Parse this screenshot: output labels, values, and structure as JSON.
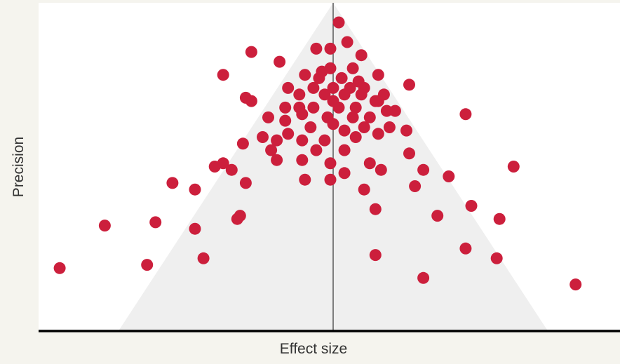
{
  "chart_data": {
    "type": "scatter",
    "title": "",
    "xlabel": "Effect size",
    "ylabel": "Precision",
    "xlim": [
      -1.0,
      1.0
    ],
    "ylim": [
      0,
      1.0
    ],
    "grid": false,
    "legend": "none",
    "reference_line_x": 0,
    "funnel": {
      "apex": [
        0,
        1.0
      ],
      "base_left": [
        -0.76,
        0
      ],
      "base_right": [
        0.76,
        0
      ]
    },
    "colors": {
      "background": "#f5f4ee",
      "plot_background": "#ffffff",
      "funnel": "#efefef",
      "points": "#cc1f3c",
      "axis": "#000000",
      "reference_line": "#333333"
    },
    "series": [
      {
        "points": [
          [
            0.02,
            0.94
          ],
          [
            0.05,
            0.88
          ],
          [
            -0.06,
            0.86
          ],
          [
            -0.01,
            0.86
          ],
          [
            0.1,
            0.84
          ],
          [
            -0.29,
            0.85
          ],
          [
            -0.19,
            0.82
          ],
          [
            -0.01,
            0.8
          ],
          [
            0.07,
            0.8
          ],
          [
            -0.39,
            0.78
          ],
          [
            -0.1,
            0.78
          ],
          [
            -0.04,
            0.79
          ],
          [
            0.16,
            0.78
          ],
          [
            -0.05,
            0.77
          ],
          [
            0.03,
            0.77
          ],
          [
            0.09,
            0.76
          ],
          [
            -0.16,
            0.74
          ],
          [
            -0.07,
            0.74
          ],
          [
            0.0,
            0.74
          ],
          [
            0.06,
            0.74
          ],
          [
            0.11,
            0.74
          ],
          [
            0.27,
            0.75
          ],
          [
            -0.12,
            0.72
          ],
          [
            -0.03,
            0.72
          ],
          [
            0.04,
            0.72
          ],
          [
            0.1,
            0.72
          ],
          [
            0.18,
            0.72
          ],
          [
            -0.31,
            0.71
          ],
          [
            -0.29,
            0.7
          ],
          [
            0.0,
            0.7
          ],
          [
            0.16,
            0.7
          ],
          [
            -0.17,
            0.68
          ],
          [
            -0.12,
            0.68
          ],
          [
            -0.07,
            0.68
          ],
          [
            0.02,
            0.68
          ],
          [
            0.08,
            0.68
          ],
          [
            0.15,
            0.7
          ],
          [
            0.22,
            0.67
          ],
          [
            -0.23,
            0.65
          ],
          [
            -0.17,
            0.64
          ],
          [
            -0.11,
            0.66
          ],
          [
            -0.02,
            0.65
          ],
          [
            0.07,
            0.65
          ],
          [
            0.13,
            0.65
          ],
          [
            0.19,
            0.67
          ],
          [
            0.47,
            0.66
          ],
          [
            -0.08,
            0.62
          ],
          [
            0.0,
            0.63
          ],
          [
            0.11,
            0.62
          ],
          [
            0.2,
            0.62
          ],
          [
            -0.16,
            0.6
          ],
          [
            0.04,
            0.61
          ],
          [
            0.26,
            0.61
          ],
          [
            -0.25,
            0.59
          ],
          [
            -0.2,
            0.58
          ],
          [
            -0.11,
            0.58
          ],
          [
            -0.03,
            0.58
          ],
          [
            0.08,
            0.59
          ],
          [
            0.16,
            0.6
          ],
          [
            -0.32,
            0.57
          ],
          [
            -0.22,
            0.55
          ],
          [
            -0.06,
            0.55
          ],
          [
            0.04,
            0.55
          ],
          [
            0.27,
            0.54
          ],
          [
            -0.39,
            0.51
          ],
          [
            -0.2,
            0.52
          ],
          [
            -0.11,
            0.52
          ],
          [
            0.13,
            0.51
          ],
          [
            -0.42,
            0.5
          ],
          [
            -0.36,
            0.49
          ],
          [
            -0.01,
            0.51
          ],
          [
            0.17,
            0.49
          ],
          [
            0.32,
            0.49
          ],
          [
            0.64,
            0.5
          ],
          [
            -0.57,
            0.45
          ],
          [
            -0.49,
            0.43
          ],
          [
            -0.31,
            0.45
          ],
          [
            -0.1,
            0.46
          ],
          [
            -0.01,
            0.46
          ],
          [
            0.04,
            0.48
          ],
          [
            0.29,
            0.44
          ],
          [
            0.41,
            0.47
          ],
          [
            0.11,
            0.43
          ],
          [
            -0.33,
            0.35
          ],
          [
            0.15,
            0.37
          ],
          [
            0.49,
            0.38
          ],
          [
            0.37,
            0.35
          ],
          [
            -0.81,
            0.32
          ],
          [
            -0.63,
            0.33
          ],
          [
            -0.49,
            0.31
          ],
          [
            -0.34,
            0.34
          ],
          [
            0.59,
            0.34
          ],
          [
            0.15,
            0.23
          ],
          [
            0.47,
            0.25
          ],
          [
            -0.66,
            0.2
          ],
          [
            -0.46,
            0.22
          ],
          [
            0.58,
            0.22
          ],
          [
            -0.97,
            0.19
          ],
          [
            0.32,
            0.16
          ],
          [
            0.86,
            0.14
          ]
        ]
      }
    ]
  }
}
